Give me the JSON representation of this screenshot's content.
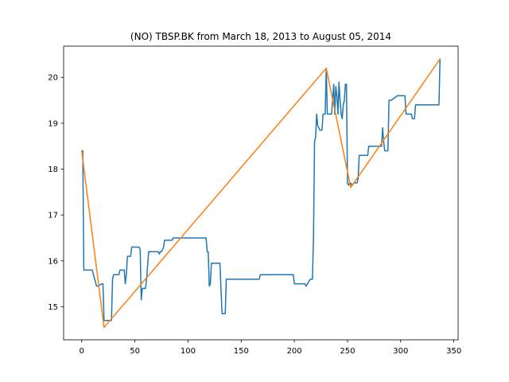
{
  "chart_data": {
    "type": "line",
    "title": "(NO) TBSP.BK from March 18, 2013 to August 05, 2014",
    "xlabel": "",
    "ylabel": "",
    "xlim": [
      -17,
      354
    ],
    "ylim": [
      14.28,
      20.68
    ],
    "xticks": [
      0,
      50,
      100,
      150,
      200,
      250,
      300,
      350
    ],
    "yticks": [
      15,
      16,
      17,
      18,
      19,
      20
    ],
    "grid": false,
    "legend": "none",
    "series": [
      {
        "color": "#1f77b4",
        "x": [
          0,
          1,
          2,
          3,
          10,
          11,
          14,
          15,
          19,
          20,
          21,
          27,
          28,
          29,
          30,
          35,
          36,
          40,
          41,
          42,
          43,
          46,
          47,
          54,
          55,
          56,
          57,
          60,
          61,
          63,
          64,
          65,
          72,
          73,
          74,
          75,
          77,
          78,
          79,
          85,
          86,
          87,
          88,
          89,
          90,
          117,
          118,
          119,
          120,
          121,
          122,
          130,
          131,
          132,
          134,
          135,
          136,
          167,
          168,
          199,
          200,
          209,
          210,
          211,
          215,
          216,
          217,
          218,
          219,
          220,
          221,
          222,
          223,
          224,
          225,
          226,
          227,
          228,
          229,
          230,
          231,
          232,
          235,
          236,
          237,
          238,
          239,
          240,
          241,
          242,
          243,
          244,
          245,
          246,
          247,
          248,
          249,
          250,
          251,
          252,
          253,
          254,
          256,
          257,
          259,
          260,
          261,
          262,
          263,
          269,
          270,
          271,
          272,
          282,
          283,
          284,
          285,
          286,
          288,
          289,
          290,
          291,
          297,
          298,
          299,
          304,
          305,
          310,
          311,
          313,
          314,
          336,
          337
        ],
        "y": [
          18.4,
          18.4,
          15.8,
          15.8,
          15.8,
          15.7,
          15.45,
          15.45,
          15.5,
          15.5,
          14.7,
          14.7,
          14.7,
          15.6,
          15.7,
          15.7,
          15.8,
          15.8,
          15.5,
          15.7,
          16.1,
          16.1,
          16.3,
          16.3,
          16.25,
          15.15,
          15.4,
          15.4,
          15.6,
          16.2,
          16.2,
          16.2,
          16.2,
          16.15,
          16.2,
          16.2,
          16.3,
          16.45,
          16.45,
          16.45,
          16.5,
          16.5,
          16.5,
          16.5,
          16.5,
          16.5,
          16.2,
          16.2,
          15.45,
          15.5,
          15.95,
          15.95,
          15.4,
          14.85,
          14.85,
          14.85,
          15.6,
          15.6,
          15.7,
          15.7,
          15.5,
          15.5,
          15.5,
          15.45,
          15.6,
          15.6,
          15.6,
          16.5,
          18.6,
          18.7,
          19.2,
          18.95,
          18.9,
          18.85,
          18.85,
          18.85,
          19.2,
          19.2,
          19.2,
          20.2,
          19.2,
          19.2,
          19.2,
          19.5,
          19.85,
          19.2,
          19.8,
          19.6,
          19.2,
          19.9,
          19.5,
          19.2,
          19.1,
          19.4,
          19.5,
          19.85,
          19.85,
          17.7,
          17.65,
          17.7,
          17.7,
          17.65,
          17.7,
          17.7,
          17.7,
          17.8,
          18.3,
          18.3,
          18.3,
          18.3,
          18.5,
          18.5,
          18.5,
          18.5,
          18.9,
          18.6,
          18.4,
          18.4,
          18.4,
          19.5,
          19.5,
          19.5,
          19.6,
          19.6,
          19.6,
          19.6,
          19.2,
          19.2,
          19.1,
          19.1,
          19.4,
          19.4,
          20.4
        ]
      },
      {
        "color": "#ff7f0e",
        "x": [
          0,
          21,
          230,
          253,
          337
        ],
        "y": [
          18.4,
          14.55,
          20.2,
          17.6,
          20.4
        ]
      }
    ]
  }
}
